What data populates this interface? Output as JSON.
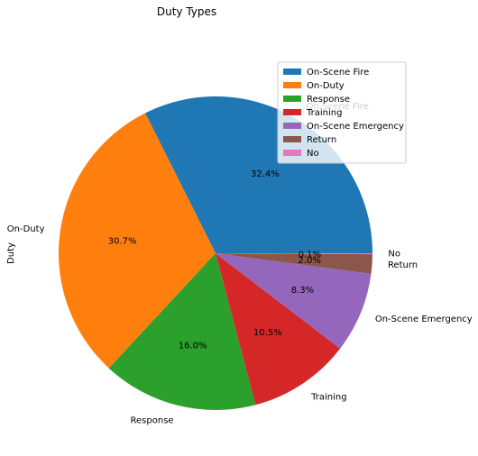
{
  "chart_data": {
    "type": "pie",
    "title": "Duty Types",
    "ylabel": "Duty",
    "slices": [
      {
        "label": "On-Scene Fire",
        "value": 32.4,
        "pct_text": "32.4%",
        "color": "#1f77b4"
      },
      {
        "label": "On-Duty",
        "value": 30.7,
        "pct_text": "30.7%",
        "color": "#ff7f0e"
      },
      {
        "label": "Response",
        "value": 16.0,
        "pct_text": "16.0%",
        "color": "#2ca02c"
      },
      {
        "label": "Training",
        "value": 10.5,
        "pct_text": "10.5%",
        "color": "#d62728"
      },
      {
        "label": "On-Scene Emergency",
        "value": 8.3,
        "pct_text": "8.3%",
        "color": "#9467bd"
      },
      {
        "label": "Return",
        "value": 2.0,
        "pct_text": "2.0%",
        "color": "#8c564b"
      },
      {
        "label": "No",
        "value": 0.1,
        "pct_text": "0.1%",
        "color": "#e377c2"
      }
    ],
    "legend": {
      "placement": "top-right",
      "entries": [
        "On-Scene Fire",
        "On-Duty",
        "Response",
        "Training",
        "On-Scene Emergency",
        "Return",
        "No"
      ]
    }
  }
}
